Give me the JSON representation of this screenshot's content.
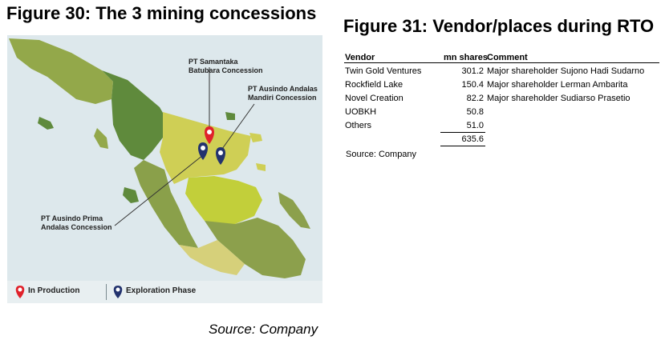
{
  "figure30": {
    "title": "Figure 30: The 3 mining concessions",
    "callouts": {
      "samantaka": [
        "PT Samantaka",
        "Batubara Concession"
      ],
      "ausindo_andalas": [
        "PT Ausindo Andalas",
        "Mandiri Concession"
      ],
      "ausindo_prima": [
        "PT Ausindo Prima",
        "Andalas Concession"
      ]
    },
    "legend": {
      "in_production": "In Production",
      "exploration": "Exploration Phase"
    },
    "colors": {
      "in_production": "#e0222b",
      "exploration": "#23336e",
      "sea": "#dde8ec"
    },
    "source": "Source: Company"
  },
  "figure31": {
    "title": "Figure 31: Vendor/places during RTO",
    "table": {
      "headers": {
        "vendor": "Vendor",
        "shares": "mn shares",
        "comment": "Comment"
      },
      "rows": [
        {
          "vendor": "Twin Gold Ventures",
          "shares": "301.2",
          "comment": "Major shareholder Sujono Hadi Sudarno"
        },
        {
          "vendor": "Rockfield Lake",
          "shares": "150.4",
          "comment": "Major shareholder Lerman Ambarita"
        },
        {
          "vendor": "Novel Creation",
          "shares": "82.2",
          "comment": "Major shareholder Sudiarso Prasetio"
        },
        {
          "vendor": "UOBKH",
          "shares": "50.8",
          "comment": ""
        },
        {
          "vendor": "Others",
          "shares": "51.0",
          "comment": ""
        }
      ],
      "total": "635.6"
    },
    "source": "Source: Company"
  }
}
